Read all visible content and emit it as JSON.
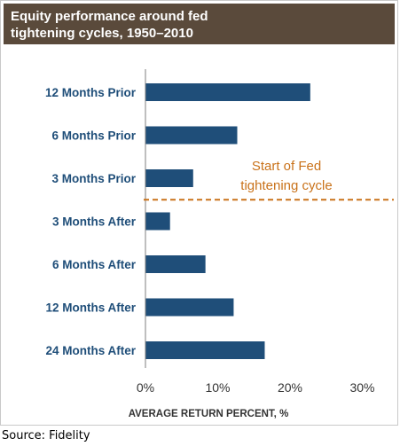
{
  "title_lines": [
    "Equity performance around fed",
    "tightening cycles, 1950–2010"
  ],
  "annotation": [
    "Start of Fed",
    "tightening cycle"
  ],
  "source": "Source: Fidelity",
  "colors": {
    "bar": "#1f4e79",
    "title_bg": "#5a4a3b",
    "label": "#1f4e79",
    "annotation": "#c9721a",
    "axis": "#7f7f7f"
  },
  "chart_data": {
    "type": "bar",
    "orientation": "horizontal",
    "title": "Equity performance around fed tightening cycles, 1950–2010",
    "categories": [
      "12 Months Prior",
      "6 Months Prior",
      "3 Months Prior",
      "3 Months After",
      "6 Months After",
      "12 Months After",
      "24 Months After"
    ],
    "values": [
      22.8,
      12.7,
      6.6,
      3.4,
      8.3,
      12.2,
      16.5
    ],
    "xlabel": "AVERAGE RETURN PERCENT, %",
    "ylabel": "",
    "xlim": [
      0,
      30
    ],
    "ticks": [
      0,
      10,
      20,
      30
    ],
    "tick_labels": [
      "0%",
      "10%",
      "20%",
      "30%"
    ],
    "grid": false,
    "divider_between": [
      "3 Months Prior",
      "3 Months After"
    ],
    "divider_label": "Start of Fed tightening cycle"
  }
}
